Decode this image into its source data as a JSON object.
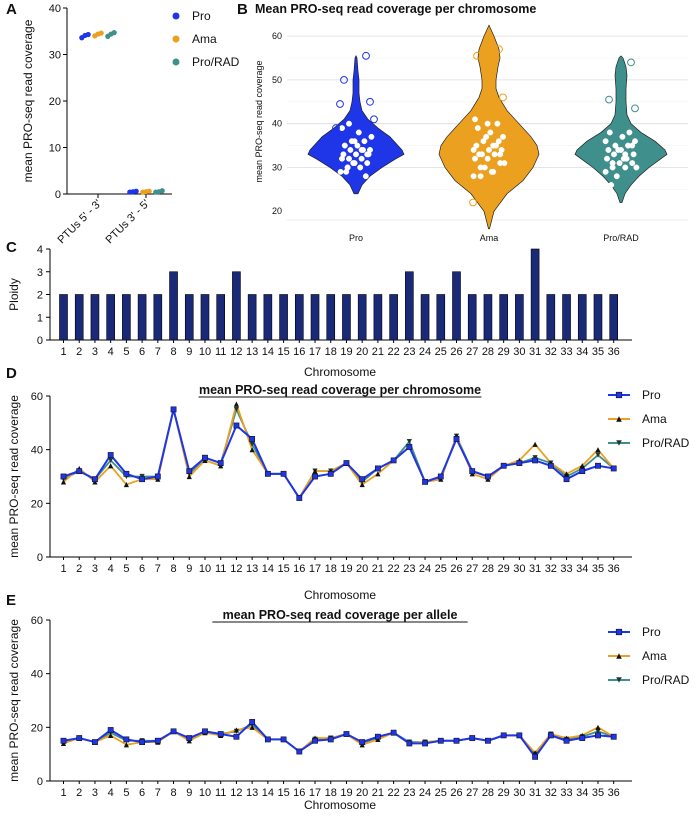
{
  "colors": {
    "pro": "#1f35e8",
    "ama": "#eba11f",
    "prorad": "#3f908c",
    "bar": "#1a2a78",
    "point_outline": "#ffffff"
  },
  "chart_data": [
    {
      "panel": "A",
      "type": "scatter",
      "title": "",
      "ylabel": "mean PRO-seq read coverage",
      "categories": [
        "PTUs 5' - 3'",
        "PTUs 3' - 5'"
      ],
      "ylim": [
        0,
        40
      ],
      "yticks": [
        0,
        10,
        20,
        30,
        40
      ],
      "legend": [
        "Pro",
        "Ama",
        "Pro/RAD"
      ],
      "series": [
        {
          "name": "Pro",
          "values": [
            [
              33.6,
              34.1,
              34.3
            ],
            [
              0.4,
              0.5,
              0.6
            ]
          ]
        },
        {
          "name": "Ama",
          "values": [
            [
              34.0,
              34.4,
              34.6
            ],
            [
              0.4,
              0.5,
              0.6
            ]
          ]
        },
        {
          "name": "Pro/RAD",
          "values": [
            [
              33.9,
              34.4,
              34.7
            ],
            [
              0.4,
              0.5,
              0.7
            ]
          ]
        }
      ]
    },
    {
      "panel": "B",
      "type": "violin",
      "title": "Mean PRO-seq read coverage per chromosome",
      "ylabel": "mean PRO-seq read coverage",
      "categories": [
        "Pro",
        "Ama",
        "Pro/RAD"
      ],
      "ylim": [
        18,
        63
      ],
      "yticks": [
        20,
        30,
        40,
        50,
        60
      ],
      "series": [
        {
          "name": "Pro",
          "values": [
            29,
            30,
            30,
            31,
            31,
            32,
            32,
            32,
            33,
            33,
            33,
            34,
            34,
            34,
            35,
            35,
            36,
            36,
            37,
            38,
            29,
            28,
            31,
            24,
            22,
            30,
            33,
            36,
            39,
            34,
            40
          ],
          "outliers": [
            55.5,
            50,
            45,
            44.5,
            41,
            39
          ]
        },
        {
          "name": "Ama",
          "values": [
            28,
            29,
            30,
            31,
            32,
            32,
            33,
            33,
            34,
            34,
            35,
            35,
            36,
            37,
            38,
            39,
            40,
            30,
            31,
            29,
            33,
            36,
            37,
            34,
            35,
            28,
            33,
            40,
            41
          ],
          "outliers": [
            57,
            55.5,
            46,
            22
          ]
        },
        {
          "name": "Pro/RAD",
          "values": [
            29,
            30,
            30,
            31,
            31,
            32,
            32,
            33,
            33,
            34,
            34,
            35,
            35,
            36,
            37,
            38,
            38,
            28,
            30,
            32,
            26,
            23,
            34,
            36,
            33,
            31,
            35
          ],
          "outliers": [
            54,
            45.5,
            43.5
          ]
        }
      ]
    },
    {
      "panel": "C",
      "type": "bar",
      "title": "",
      "xlabel": "Chromosome",
      "ylabel": "Ploidy",
      "ylim": [
        0,
        4
      ],
      "yticks": [
        0,
        1,
        2,
        3,
        4
      ],
      "categories": [
        "1",
        "2",
        "3",
        "4",
        "5",
        "6",
        "7",
        "8",
        "9",
        "10",
        "11",
        "12",
        "13",
        "14",
        "15",
        "16",
        "17",
        "18",
        "19",
        "20",
        "21",
        "22",
        "23",
        "24",
        "25",
        "26",
        "27",
        "28",
        "29",
        "30",
        "31",
        "32",
        "33",
        "34",
        "35",
        "36"
      ],
      "values": [
        2,
        2,
        2,
        2,
        2,
        2,
        2,
        3,
        2,
        2,
        2,
        3,
        2,
        2,
        2,
        2,
        2,
        2,
        2,
        2,
        2,
        2,
        3,
        2,
        2,
        3,
        2,
        2,
        2,
        2,
        4,
        2,
        2,
        2,
        2,
        2
      ]
    },
    {
      "panel": "D",
      "type": "line",
      "title": "mean PRO-seq read coverage per chromosome",
      "xlabel": "Chromosome",
      "ylabel": "mean PRO-seq read coverage",
      "ylim": [
        0,
        60
      ],
      "yticks": [
        0,
        20,
        40,
        60
      ],
      "categories": [
        "1",
        "2",
        "3",
        "4",
        "5",
        "6",
        "7",
        "8",
        "9",
        "10",
        "11",
        "12",
        "13",
        "14",
        "15",
        "16",
        "17",
        "18",
        "19",
        "20",
        "21",
        "22",
        "23",
        "24",
        "25",
        "26",
        "27",
        "28",
        "29",
        "30",
        "31",
        "32",
        "33",
        "34",
        "35",
        "36"
      ],
      "series": [
        {
          "name": "Pro",
          "values": [
            30,
            32,
            29,
            38,
            31,
            29,
            30,
            55,
            32,
            37,
            35,
            49,
            44,
            31,
            31,
            22,
            30,
            31,
            35,
            29,
            33,
            36,
            41,
            28,
            30,
            44,
            32,
            30,
            34,
            35,
            36,
            34,
            29,
            32,
            34,
            33
          ]
        },
        {
          "name": "Ama",
          "values": [
            28,
            33,
            28,
            34,
            27,
            29,
            29,
            55,
            30,
            36,
            34,
            57,
            40,
            31,
            31,
            22,
            32,
            32,
            35,
            27,
            31,
            36,
            41,
            28,
            29,
            45,
            31,
            29,
            34,
            36,
            42,
            35,
            31,
            34,
            40,
            33
          ]
        },
        {
          "name": "Pro/RAD",
          "values": [
            29,
            32,
            29,
            36,
            30,
            30,
            30,
            55,
            31,
            37,
            35,
            55,
            42,
            31,
            31,
            22,
            32,
            32,
            35,
            28,
            33,
            36,
            43,
            28,
            29,
            45,
            32,
            30,
            34,
            35,
            37,
            35,
            30,
            33,
            38,
            33
          ]
        }
      ]
    },
    {
      "panel": "E",
      "type": "line",
      "title": "mean PRO-seq read coverage per allele",
      "xlabel": "Chromosome",
      "ylabel": "mean PRO-seq read coverage",
      "ylim": [
        0,
        60
      ],
      "yticks": [
        0,
        20,
        40,
        60
      ],
      "categories": [
        "1",
        "2",
        "3",
        "4",
        "5",
        "6",
        "7",
        "8",
        "9",
        "10",
        "11",
        "12",
        "13",
        "14",
        "15",
        "16",
        "17",
        "18",
        "19",
        "20",
        "21",
        "22",
        "23",
        "24",
        "25",
        "26",
        "27",
        "28",
        "29",
        "30",
        "31",
        "32",
        "33",
        "34",
        "35",
        "36"
      ],
      "series": [
        {
          "name": "Pro",
          "values": [
            15,
            16,
            14.5,
            19,
            15.5,
            14.5,
            15,
            18.5,
            16,
            18.5,
            17.5,
            16.5,
            22,
            15.5,
            15.5,
            11,
            15,
            15.5,
            17.5,
            14.5,
            16.5,
            18,
            14,
            14,
            15,
            15,
            16,
            15,
            17,
            17,
            9,
            17,
            15,
            16,
            17,
            16.5
          ]
        },
        {
          "name": "Ama",
          "values": [
            14,
            16,
            14.5,
            17,
            13.5,
            14.5,
            14.5,
            18.5,
            15,
            18,
            17,
            19,
            20,
            15.5,
            15.5,
            11,
            16,
            16,
            17.5,
            13.5,
            15.5,
            18,
            14,
            14.5,
            15,
            15,
            16,
            15,
            17,
            17,
            10.5,
            17.5,
            16,
            17,
            20,
            16.5
          ]
        },
        {
          "name": "Pro/RAD",
          "values": [
            14.5,
            16,
            14.5,
            18,
            15,
            15,
            15,
            18.5,
            15.5,
            18.5,
            17.5,
            18.5,
            21,
            15.5,
            15.5,
            11,
            15.5,
            16,
            17.5,
            14,
            16,
            18,
            14.5,
            14.5,
            15,
            15,
            16,
            15,
            17,
            17,
            10,
            17.5,
            15.5,
            16.5,
            18.5,
            16.5
          ]
        }
      ]
    }
  ],
  "panel_labels": [
    "A",
    "B",
    "C",
    "D",
    "E"
  ]
}
